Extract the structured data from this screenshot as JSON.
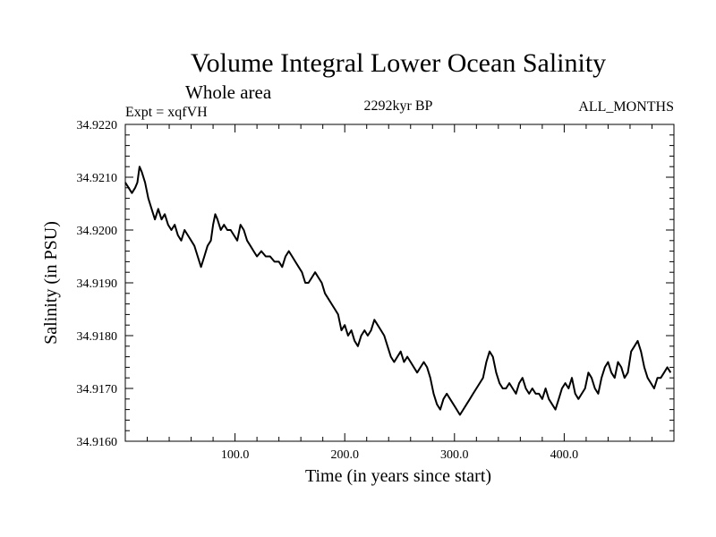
{
  "chart_data": {
    "type": "line",
    "title": "Volume Integral Lower Ocean Salinity",
    "subtitle": "Whole area",
    "experiment_label": "Expt = xqfVH",
    "period_label": "2292kyr BP",
    "months_label": "ALL_MONTHS",
    "xlabel": "Time (in years since start)",
    "ylabel": "Salinity (in PSU)",
    "xlim": [
      0,
      500
    ],
    "ylim": [
      34.916,
      34.922
    ],
    "x_ticks": [
      100,
      200,
      300,
      400
    ],
    "x_tick_labels": [
      "100.0",
      "200.0",
      "300.0",
      "400.0"
    ],
    "y_ticks": [
      34.916,
      34.917,
      34.918,
      34.919,
      34.92,
      34.921,
      34.922
    ],
    "y_tick_labels": [
      "34.9160",
      "34.9170",
      "34.9180",
      "34.9190",
      "34.9200",
      "34.9210",
      "34.9220"
    ],
    "grid": false,
    "line_color": "#000000",
    "series": [
      {
        "name": "salinity",
        "points": [
          [
            0,
            34.9209
          ],
          [
            3,
            34.9208
          ],
          [
            6,
            34.9207
          ],
          [
            9,
            34.9208
          ],
          [
            11,
            34.9209
          ],
          [
            13,
            34.9212
          ],
          [
            15,
            34.9211
          ],
          [
            18,
            34.9209
          ],
          [
            21,
            34.9206
          ],
          [
            24,
            34.9204
          ],
          [
            27,
            34.9202
          ],
          [
            30,
            34.9204
          ],
          [
            33,
            34.9202
          ],
          [
            36,
            34.9203
          ],
          [
            39,
            34.9201
          ],
          [
            42,
            34.92
          ],
          [
            45,
            34.9201
          ],
          [
            48,
            34.9199
          ],
          [
            51,
            34.9198
          ],
          [
            54,
            34.92
          ],
          [
            57,
            34.9199
          ],
          [
            60,
            34.9198
          ],
          [
            63,
            34.9197
          ],
          [
            66,
            34.9195
          ],
          [
            69,
            34.9193
          ],
          [
            72,
            34.9195
          ],
          [
            75,
            34.9197
          ],
          [
            78,
            34.9198
          ],
          [
            80,
            34.9201
          ],
          [
            82,
            34.9203
          ],
          [
            84,
            34.9202
          ],
          [
            87,
            34.92
          ],
          [
            90,
            34.9201
          ],
          [
            93,
            34.92
          ],
          [
            96,
            34.92
          ],
          [
            99,
            34.9199
          ],
          [
            102,
            34.9198
          ],
          [
            105,
            34.9201
          ],
          [
            108,
            34.92
          ],
          [
            111,
            34.9198
          ],
          [
            114,
            34.9197
          ],
          [
            117,
            34.9196
          ],
          [
            120,
            34.9195
          ],
          [
            124,
            34.9196
          ],
          [
            128,
            34.9195
          ],
          [
            132,
            34.9195
          ],
          [
            136,
            34.9194
          ],
          [
            140,
            34.9194
          ],
          [
            143,
            34.9193
          ],
          [
            146,
            34.9195
          ],
          [
            149,
            34.9196
          ],
          [
            152,
            34.9195
          ],
          [
            155,
            34.9194
          ],
          [
            158,
            34.9193
          ],
          [
            161,
            34.9192
          ],
          [
            164,
            34.919
          ],
          [
            167,
            34.919
          ],
          [
            170,
            34.9191
          ],
          [
            173,
            34.9192
          ],
          [
            176,
            34.9191
          ],
          [
            179,
            34.919
          ],
          [
            182,
            34.9188
          ],
          [
            185,
            34.9187
          ],
          [
            188,
            34.9186
          ],
          [
            191,
            34.9185
          ],
          [
            194,
            34.9184
          ],
          [
            197,
            34.9181
          ],
          [
            200,
            34.9182
          ],
          [
            203,
            34.918
          ],
          [
            206,
            34.9181
          ],
          [
            209,
            34.9179
          ],
          [
            212,
            34.9178
          ],
          [
            215,
            34.918
          ],
          [
            218,
            34.9181
          ],
          [
            221,
            34.918
          ],
          [
            224,
            34.9181
          ],
          [
            227,
            34.9183
          ],
          [
            230,
            34.9182
          ],
          [
            233,
            34.9181
          ],
          [
            236,
            34.918
          ],
          [
            239,
            34.9178
          ],
          [
            242,
            34.9176
          ],
          [
            245,
            34.9175
          ],
          [
            248,
            34.9176
          ],
          [
            251,
            34.9177
          ],
          [
            254,
            34.9175
          ],
          [
            257,
            34.9176
          ],
          [
            260,
            34.9175
          ],
          [
            263,
            34.9174
          ],
          [
            266,
            34.9173
          ],
          [
            269,
            34.9174
          ],
          [
            272,
            34.9175
          ],
          [
            275,
            34.9174
          ],
          [
            278,
            34.9172
          ],
          [
            281,
            34.9169
          ],
          [
            284,
            34.9167
          ],
          [
            287,
            34.9166
          ],
          [
            290,
            34.9168
          ],
          [
            293,
            34.9169
          ],
          [
            296,
            34.9168
          ],
          [
            299,
            34.9167
          ],
          [
            302,
            34.9166
          ],
          [
            305,
            34.9165
          ],
          [
            308,
            34.9166
          ],
          [
            311,
            34.9167
          ],
          [
            314,
            34.9168
          ],
          [
            317,
            34.9169
          ],
          [
            320,
            34.917
          ],
          [
            323,
            34.9171
          ],
          [
            326,
            34.9172
          ],
          [
            329,
            34.9175
          ],
          [
            332,
            34.9177
          ],
          [
            335,
            34.9176
          ],
          [
            338,
            34.9173
          ],
          [
            341,
            34.9171
          ],
          [
            344,
            34.917
          ],
          [
            347,
            34.917
          ],
          [
            350,
            34.9171
          ],
          [
            353,
            34.917
          ],
          [
            356,
            34.9169
          ],
          [
            359,
            34.9171
          ],
          [
            362,
            34.9172
          ],
          [
            365,
            34.917
          ],
          [
            368,
            34.9169
          ],
          [
            371,
            34.917
          ],
          [
            374,
            34.9169
          ],
          [
            377,
            34.9169
          ],
          [
            380,
            34.9168
          ],
          [
            383,
            34.917
          ],
          [
            386,
            34.9168
          ],
          [
            389,
            34.9167
          ],
          [
            392,
            34.9166
          ],
          [
            395,
            34.9168
          ],
          [
            398,
            34.917
          ],
          [
            401,
            34.9171
          ],
          [
            404,
            34.917
          ],
          [
            407,
            34.9172
          ],
          [
            410,
            34.9169
          ],
          [
            413,
            34.9168
          ],
          [
            416,
            34.9169
          ],
          [
            419,
            34.917
          ],
          [
            422,
            34.9173
          ],
          [
            425,
            34.9172
          ],
          [
            428,
            34.917
          ],
          [
            431,
            34.9169
          ],
          [
            434,
            34.9172
          ],
          [
            437,
            34.9174
          ],
          [
            440,
            34.9175
          ],
          [
            443,
            34.9173
          ],
          [
            446,
            34.9172
          ],
          [
            449,
            34.9175
          ],
          [
            452,
            34.9174
          ],
          [
            455,
            34.9172
          ],
          [
            458,
            34.9173
          ],
          [
            461,
            34.9177
          ],
          [
            464,
            34.9178
          ],
          [
            467,
            34.9179
          ],
          [
            470,
            34.9177
          ],
          [
            473,
            34.9174
          ],
          [
            476,
            34.9172
          ],
          [
            479,
            34.9171
          ],
          [
            482,
            34.917
          ],
          [
            485,
            34.9172
          ],
          [
            488,
            34.9172
          ],
          [
            491,
            34.9173
          ],
          [
            494,
            34.9174
          ],
          [
            497,
            34.9173
          ]
        ]
      }
    ]
  }
}
